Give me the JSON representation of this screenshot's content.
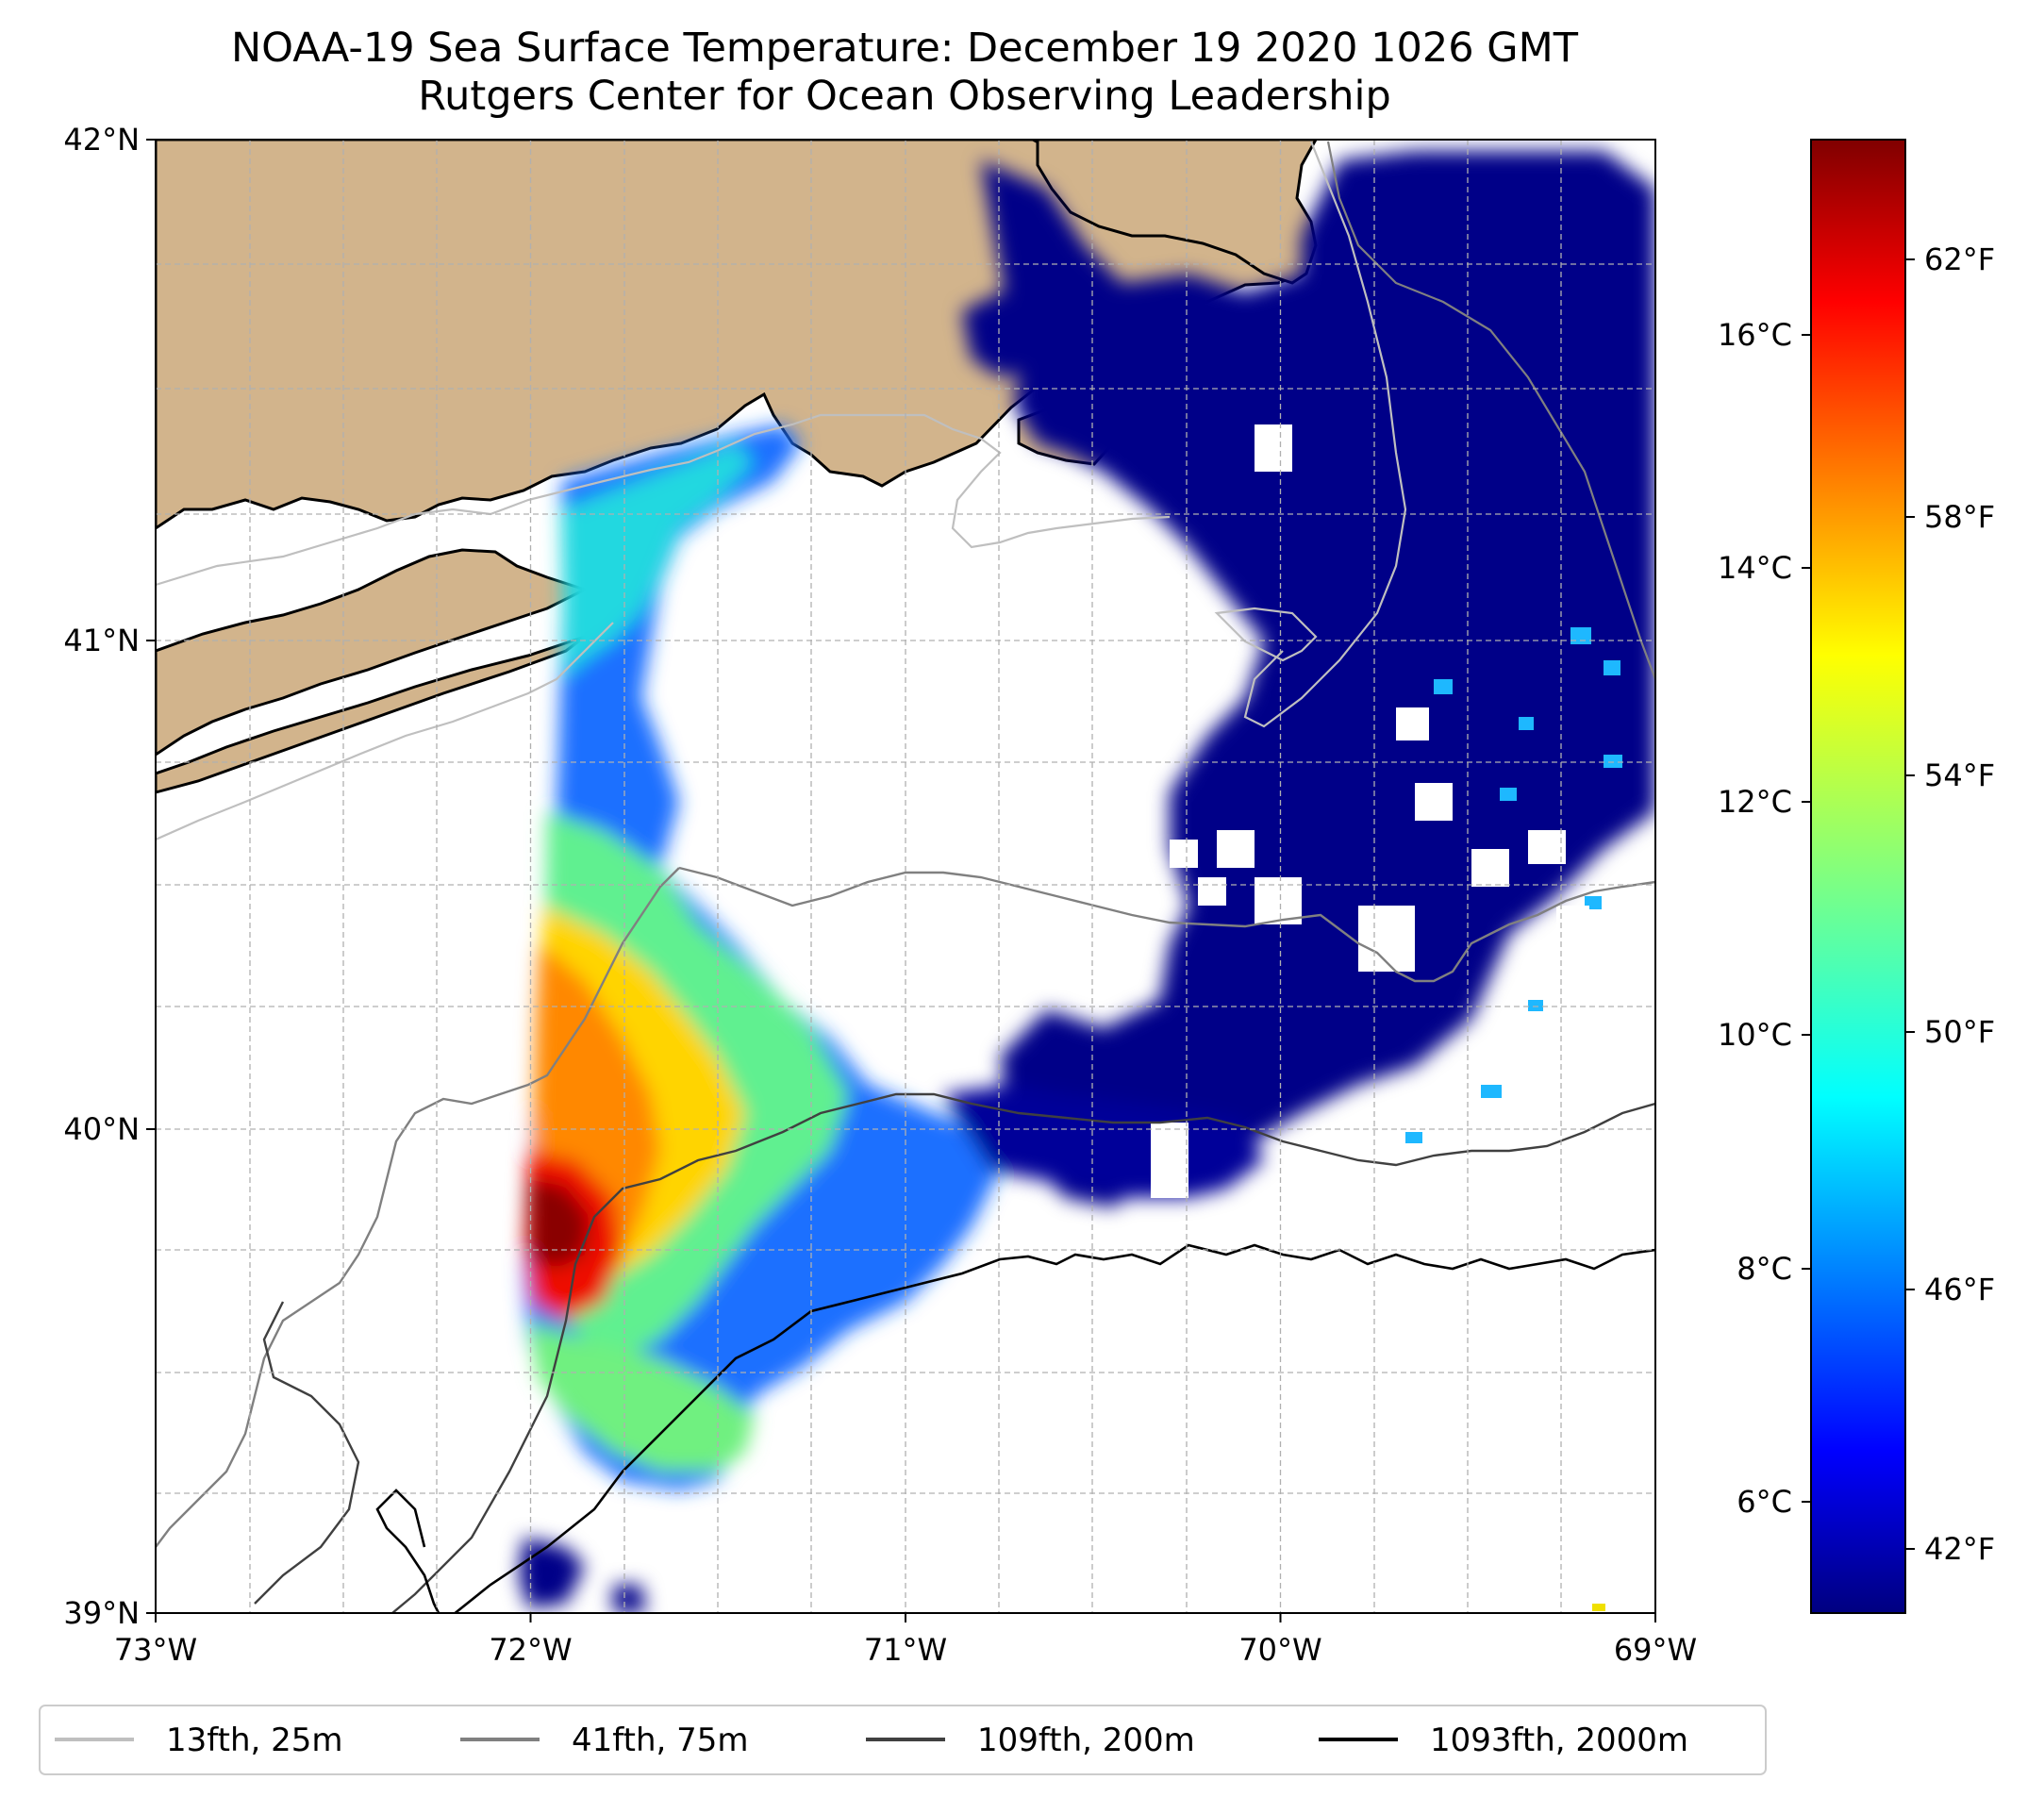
{
  "title": "NOAA-19 Sea Surface Temperature: December 19 2020 1026 GMT",
  "subtitle": "Rutgers Center for Ocean Observing Leadership",
  "map": {
    "lon_range": [
      -73,
      -69
    ],
    "lat_range": [
      39,
      42
    ],
    "lat_ticks": [
      "42°N",
      "41°N",
      "40°N",
      "39°N"
    ],
    "lon_ticks": [
      "73°W",
      "72°W",
      "71°W",
      "70°W",
      "69°W"
    ],
    "grid": true,
    "land_color": "#d2b48c",
    "ocean_nodata_color": "#ffffff"
  },
  "colorbar": {
    "colormap": "jet",
    "celsius_ticks": [
      "16°C",
      "14°C",
      "12°C",
      "10°C",
      "8°C",
      "6°C"
    ],
    "fahrenheit_ticks": [
      "62°F",
      "58°F",
      "54°F",
      "50°F",
      "46°F",
      "42°F"
    ]
  },
  "legend": {
    "items": [
      {
        "label": "13fth, 25m",
        "color": "#bfbfbf"
      },
      {
        "label": "41fth, 75m",
        "color": "#808080"
      },
      {
        "label": "109fth, 200m",
        "color": "#404040"
      },
      {
        "label": "1093fth, 2000m",
        "color": "#000000"
      }
    ]
  }
}
